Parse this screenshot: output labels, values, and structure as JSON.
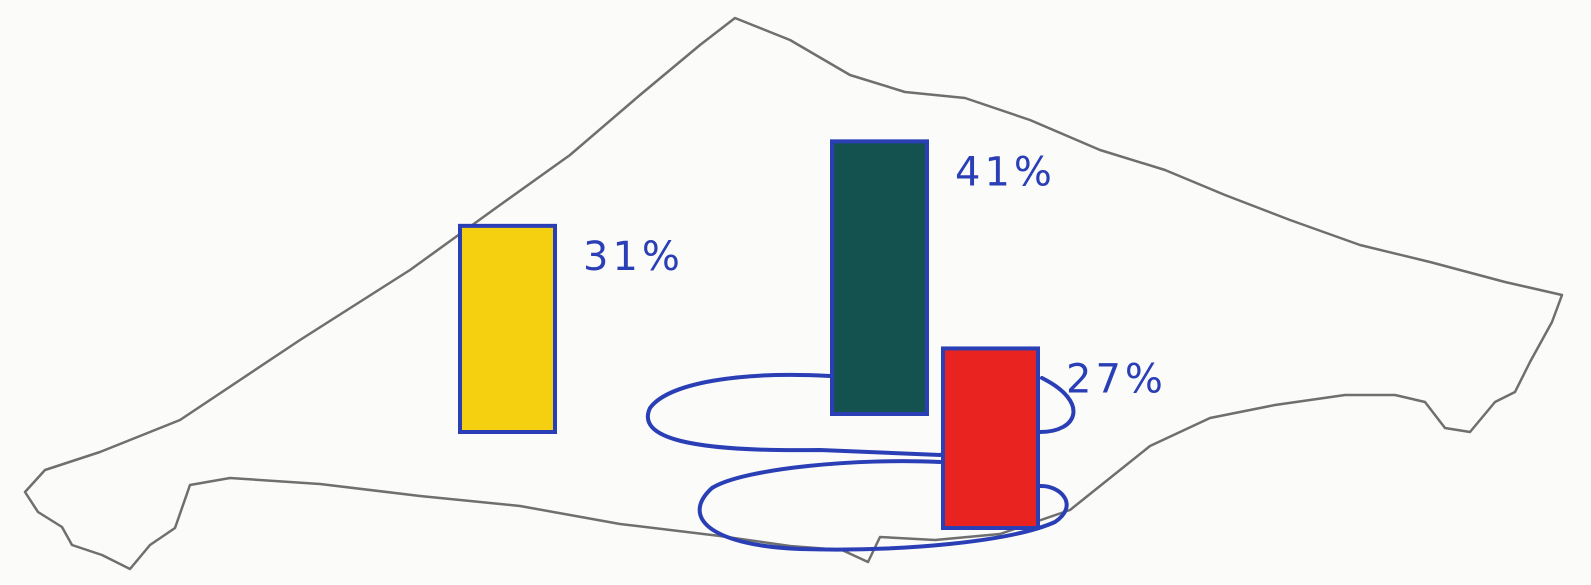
{
  "chart_data": {
    "type": "bar",
    "categories": [
      "",
      "",
      ""
    ],
    "values": [
      31,
      41,
      27
    ],
    "labels": [
      "31%",
      "41%",
      "27%"
    ],
    "colors": [
      "#f5d010",
      "#13524f",
      "#e9231f"
    ],
    "outline_color": "#2a3fb6",
    "ylim": [
      0,
      100
    ],
    "title": "",
    "xlabel": "",
    "ylabel": "",
    "grid": false,
    "legend": "none"
  }
}
